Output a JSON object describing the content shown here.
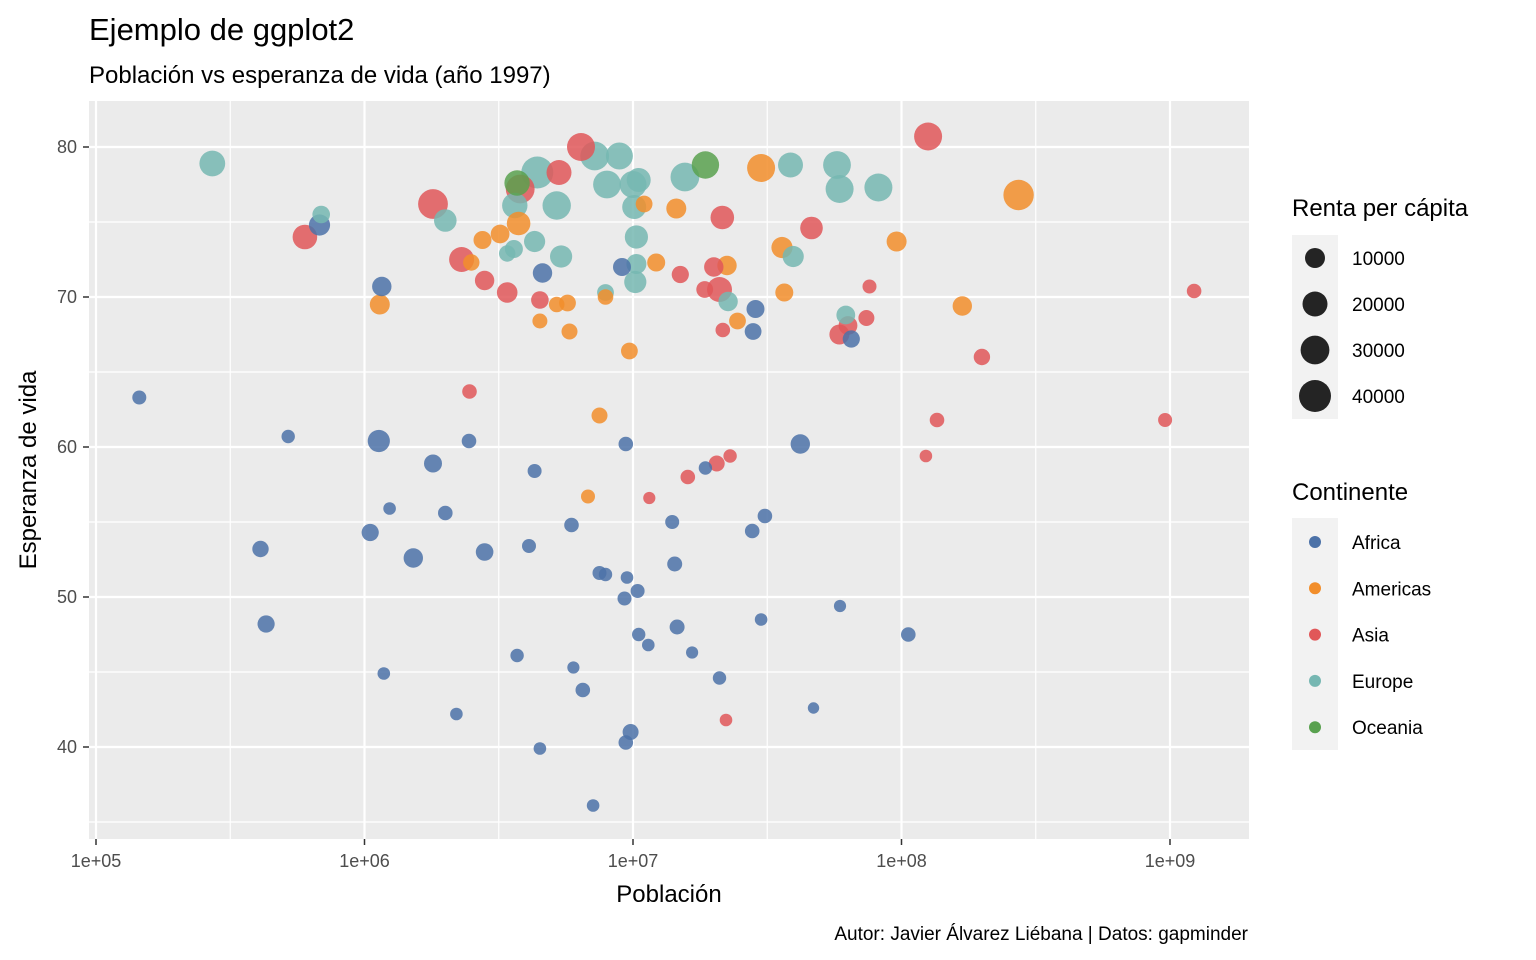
{
  "chart_data": {
    "type": "scatter",
    "title": "Ejemplo de ggplot2",
    "subtitle": "Población vs esperanza de vida (año 1997)",
    "caption": "Autor: Javier Álvarez Liébana | Datos: gapminder",
    "xlabel": "Población",
    "ylabel": "Esperanza de vida",
    "x_scale": "log10",
    "xlim": [
      100000,
      2000000000
    ],
    "ylim": [
      34,
      84
    ],
    "x_ticks": [
      {
        "value": 100000,
        "label": "1e+05"
      },
      {
        "value": 1000000,
        "label": "1e+06"
      },
      {
        "value": 10000000,
        "label": "1e+07"
      },
      {
        "value": 100000000,
        "label": "1e+08"
      },
      {
        "value": 1000000000,
        "label": "1e+09"
      }
    ],
    "y_ticks": [
      {
        "value": 40,
        "label": "40"
      },
      {
        "value": 50,
        "label": "50"
      },
      {
        "value": 60,
        "label": "60"
      },
      {
        "value": 70,
        "label": "70"
      },
      {
        "value": 80,
        "label": "80"
      }
    ],
    "grid": true,
    "legend_position": "right",
    "size_legend": {
      "title": "Renta per cápita",
      "items": [
        {
          "value": 10000,
          "label": "10000"
        },
        {
          "value": 20000,
          "label": "20000"
        },
        {
          "value": 30000,
          "label": "30000"
        },
        {
          "value": 40000,
          "label": "40000"
        }
      ]
    },
    "color_legend": {
      "title": "Continente",
      "items": [
        {
          "name": "Africa",
          "label": "Africa",
          "color": "#4C72A8"
        },
        {
          "name": "Americas",
          "label": "Americas",
          "color": "#F28E2B"
        },
        {
          "name": "Asia",
          "label": "Asia",
          "color": "#E15759"
        },
        {
          "name": "Europe",
          "label": "Europe",
          "color": "#76B7B2"
        },
        {
          "name": "Oceania",
          "label": "Oceania",
          "color": "#59A14F"
        }
      ]
    },
    "series": [
      {
        "name": "Africa",
        "color": "#4C72A8",
        "points": [
          {
            "x": 145000,
            "y": 63.3,
            "gdp": 2500
          },
          {
            "x": 520000,
            "y": 60.7,
            "gdp": 2000
          },
          {
            "x": 680000,
            "y": 74.8,
            "gdp": 12000
          },
          {
            "x": 1130000,
            "y": 60.4,
            "gdp": 14000
          },
          {
            "x": 1160000,
            "y": 70.7,
            "gdp": 9000
          },
          {
            "x": 1240000,
            "y": 55.9,
            "gdp": 1500
          },
          {
            "x": 1180000,
            "y": 44.9,
            "gdp": 1500
          },
          {
            "x": 1050000,
            "y": 54.3,
            "gdp": 6000
          },
          {
            "x": 410000,
            "y": 53.2,
            "gdp": 5000
          },
          {
            "x": 430000,
            "y": 48.2,
            "gdp": 6000
          },
          {
            "x": 1520000,
            "y": 52.6,
            "gdp": 9000
          },
          {
            "x": 1800000,
            "y": 58.9,
            "gdp": 7000
          },
          {
            "x": 2000000,
            "y": 55.6,
            "gdp": 3000
          },
          {
            "x": 2200000,
            "y": 42.2,
            "gdp": 1500
          },
          {
            "x": 2450000,
            "y": 60.4,
            "gdp": 3000
          },
          {
            "x": 2800000,
            "y": 53.0,
            "gdp": 6500
          },
          {
            "x": 3700000,
            "y": 46.1,
            "gdp": 2000
          },
          {
            "x": 4100000,
            "y": 53.4,
            "gdp": 2500
          },
          {
            "x": 4300000,
            "y": 58.4,
            "gdp": 2500
          },
          {
            "x": 4600000,
            "y": 71.6,
            "gdp": 9000
          },
          {
            "x": 4500000,
            "y": 39.9,
            "gdp": 1500
          },
          {
            "x": 5900000,
            "y": 54.8,
            "gdp": 3000
          },
          {
            "x": 6000000,
            "y": 45.3,
            "gdp": 1200
          },
          {
            "x": 6500000,
            "y": 43.8,
            "gdp": 3000
          },
          {
            "x": 7100000,
            "y": 36.1,
            "gdp": 1500
          },
          {
            "x": 7500000,
            "y": 51.6,
            "gdp": 2500
          },
          {
            "x": 7900000,
            "y": 51.5,
            "gdp": 2000
          },
          {
            "x": 9300000,
            "y": 49.9,
            "gdp": 2500
          },
          {
            "x": 9400000,
            "y": 60.2,
            "gdp": 3000
          },
          {
            "x": 9500000,
            "y": 51.3,
            "gdp": 1500
          },
          {
            "x": 9400000,
            "y": 40.3,
            "gdp": 3000
          },
          {
            "x": 9800000,
            "y": 41.0,
            "gdp": 4500
          },
          {
            "x": 9100000,
            "y": 72.0,
            "gdp": 7000
          },
          {
            "x": 10400000,
            "y": 50.4,
            "gdp": 2500
          },
          {
            "x": 10500000,
            "y": 47.5,
            "gdp": 2000
          },
          {
            "x": 11400000,
            "y": 46.8,
            "gdp": 1500
          },
          {
            "x": 14000000,
            "y": 55.0,
            "gdp": 2500
          },
          {
            "x": 14300000,
            "y": 52.2,
            "gdp": 3500
          },
          {
            "x": 14600000,
            "y": 48.0,
            "gdp": 3500
          },
          {
            "x": 16600000,
            "y": 46.3,
            "gdp": 1200
          },
          {
            "x": 18600000,
            "y": 58.6,
            "gdp": 2000
          },
          {
            "x": 21000000,
            "y": 44.6,
            "gdp": 2000
          },
          {
            "x": 27800000,
            "y": 54.4,
            "gdp": 3000
          },
          {
            "x": 28000000,
            "y": 67.7,
            "gdp": 5500
          },
          {
            "x": 28600000,
            "y": 69.2,
            "gdp": 7000
          },
          {
            "x": 30000000,
            "y": 48.5,
            "gdp": 1500
          },
          {
            "x": 31000000,
            "y": 55.4,
            "gdp": 3000
          },
          {
            "x": 42000000,
            "y": 60.2,
            "gdp": 9000
          },
          {
            "x": 47000000,
            "y": 42.6,
            "gdp": 800
          },
          {
            "x": 59000000,
            "y": 49.4,
            "gdp": 1200
          },
          {
            "x": 65000000,
            "y": 67.2,
            "gdp": 6000
          },
          {
            "x": 106000000,
            "y": 47.5,
            "gdp": 3000
          }
        ]
      },
      {
        "name": "Americas",
        "color": "#F28E2B",
        "points": [
          {
            "x": 1140000,
            "y": 69.5,
            "gdp": 10000
          },
          {
            "x": 2500000,
            "y": 72.3,
            "gdp": 5000
          },
          {
            "x": 2750000,
            "y": 73.8,
            "gdp": 7000
          },
          {
            "x": 3200000,
            "y": 74.2,
            "gdp": 8000
          },
          {
            "x": 3750000,
            "y": 74.9,
            "gdp": 17000
          },
          {
            "x": 4500000,
            "y": 68.4,
            "gdp": 3500
          },
          {
            "x": 5200000,
            "y": 69.5,
            "gdp": 4000
          },
          {
            "x": 5700000,
            "y": 69.6,
            "gdp": 5500
          },
          {
            "x": 5800000,
            "y": 67.7,
            "gdp": 4500
          },
          {
            "x": 6800000,
            "y": 56.7,
            "gdp": 2500
          },
          {
            "x": 7500000,
            "y": 62.1,
            "gdp": 4500
          },
          {
            "x": 7900000,
            "y": 70.0,
            "gdp": 4000
          },
          {
            "x": 9700000,
            "y": 66.4,
            "gdp": 5500
          },
          {
            "x": 11000000,
            "y": 76.2,
            "gdp": 5500
          },
          {
            "x": 12200000,
            "y": 72.3,
            "gdp": 7000
          },
          {
            "x": 14500000,
            "y": 75.9,
            "gdp": 10000
          },
          {
            "x": 22400000,
            "y": 72.1,
            "gdp": 9000
          },
          {
            "x": 24500000,
            "y": 68.4,
            "gdp": 5500
          },
          {
            "x": 30000000,
            "y": 78.6,
            "gdp": 28000
          },
          {
            "x": 35900000,
            "y": 73.3,
            "gdp": 12000
          },
          {
            "x": 36600000,
            "y": 70.3,
            "gdp": 7000
          },
          {
            "x": 95900000,
            "y": 73.7,
            "gdp": 10000
          },
          {
            "x": 168500000,
            "y": 69.4,
            "gdp": 9000
          },
          {
            "x": 272900000,
            "y": 76.8,
            "gdp": 35000
          }
        ]
      },
      {
        "name": "Asia",
        "color": "#E15759",
        "points": [
          {
            "x": 600000,
            "y": 74.0,
            "gdp": 19000
          },
          {
            "x": 1800000,
            "y": 76.2,
            "gdp": 33000
          },
          {
            "x": 2300000,
            "y": 72.5,
            "gdp": 20000
          },
          {
            "x": 2460000,
            "y": 63.7,
            "gdp": 3000
          },
          {
            "x": 2800000,
            "y": 71.1,
            "gdp": 9000
          },
          {
            "x": 3400000,
            "y": 70.3,
            "gdp": 11000
          },
          {
            "x": 3800000,
            "y": 77.2,
            "gdp": 30000
          },
          {
            "x": 4500000,
            "y": 69.8,
            "gdp": 6500
          },
          {
            "x": 5300000,
            "y": 78.3,
            "gdp": 20000
          },
          {
            "x": 6400000,
            "y": 80.0,
            "gdp": 28000
          },
          {
            "x": 11500000,
            "y": 56.6,
            "gdp": 1200
          },
          {
            "x": 15000000,
            "y": 71.5,
            "gdp": 6000
          },
          {
            "x": 16000000,
            "y": 58.0,
            "gdp": 3000
          },
          {
            "x": 18500000,
            "y": 70.5,
            "gdp": 5500
          },
          {
            "x": 20000000,
            "y": 72.0,
            "gdp": 9000
          },
          {
            "x": 20500000,
            "y": 58.9,
            "gdp": 4500
          },
          {
            "x": 21000000,
            "y": 70.5,
            "gdp": 20000
          },
          {
            "x": 21500000,
            "y": 75.3,
            "gdp": 17000
          },
          {
            "x": 21600000,
            "y": 67.8,
            "gdp": 3000
          },
          {
            "x": 22200000,
            "y": 41.8,
            "gdp": 1500
          },
          {
            "x": 23000000,
            "y": 59.4,
            "gdp": 2000
          },
          {
            "x": 46200000,
            "y": 74.6,
            "gdp": 15000
          },
          {
            "x": 58700000,
            "y": 67.5,
            "gdp": 10000
          },
          {
            "x": 63200000,
            "y": 68.1,
            "gdp": 8000
          },
          {
            "x": 74000000,
            "y": 68.6,
            "gdp": 4500
          },
          {
            "x": 76000000,
            "y": 70.7,
            "gdp": 2500
          },
          {
            "x": 123300000,
            "y": 59.4,
            "gdp": 1500
          },
          {
            "x": 125600000,
            "y": 80.7,
            "gdp": 28000
          },
          {
            "x": 135600000,
            "y": 61.8,
            "gdp": 3000
          },
          {
            "x": 199300000,
            "y": 66.0,
            "gdp": 5000
          },
          {
            "x": 959000000,
            "y": 61.8,
            "gdp": 2500
          },
          {
            "x": 1230000000,
            "y": 70.4,
            "gdp": 3000
          }
        ]
      },
      {
        "name": "Europe",
        "color": "#76B7B2",
        "points": [
          {
            "x": 271000,
            "y": 78.9,
            "gdp": 22000
          },
          {
            "x": 690000,
            "y": 75.5,
            "gdp": 6500
          },
          {
            "x": 2000000,
            "y": 75.1,
            "gdp": 15000
          },
          {
            "x": 3400000,
            "y": 72.9,
            "gdp": 5000
          },
          {
            "x": 3600000,
            "y": 73.2,
            "gdp": 7000
          },
          {
            "x": 3630000,
            "y": 76.1,
            "gdp": 21000
          },
          {
            "x": 4300000,
            "y": 73.7,
            "gdp": 12000
          },
          {
            "x": 4400000,
            "y": 78.3,
            "gdp": 40000
          },
          {
            "x": 5200000,
            "y": 76.1,
            "gdp": 29000
          },
          {
            "x": 5400000,
            "y": 72.7,
            "gdp": 14000
          },
          {
            "x": 7200000,
            "y": 79.4,
            "gdp": 30000
          },
          {
            "x": 7900000,
            "y": 70.3,
            "gdp": 5500
          },
          {
            "x": 8000000,
            "y": 77.5,
            "gdp": 27000
          },
          {
            "x": 8900000,
            "y": 79.4,
            "gdp": 25000
          },
          {
            "x": 10000000,
            "y": 77.5,
            "gdp": 25000
          },
          {
            "x": 10100000,
            "y": 76.0,
            "gdp": 18000
          },
          {
            "x": 10200000,
            "y": 71.0,
            "gdp": 14000
          },
          {
            "x": 10300000,
            "y": 74.0,
            "gdp": 16000
          },
          {
            "x": 10300000,
            "y": 72.2,
            "gdp": 10000
          },
          {
            "x": 10500000,
            "y": 77.8,
            "gdp": 18000
          },
          {
            "x": 15600000,
            "y": 78.0,
            "gdp": 30000
          },
          {
            "x": 22600000,
            "y": 69.7,
            "gdp": 9000
          },
          {
            "x": 38600000,
            "y": 78.8,
            "gdp": 20000
          },
          {
            "x": 39500000,
            "y": 72.7,
            "gdp": 12000
          },
          {
            "x": 57500000,
            "y": 78.8,
            "gdp": 27000
          },
          {
            "x": 58800000,
            "y": 77.2,
            "gdp": 28000
          },
          {
            "x": 62000000,
            "y": 68.8,
            "gdp": 8000
          },
          {
            "x": 82000000,
            "y": 77.3,
            "gdp": 28000
          }
        ]
      },
      {
        "name": "Oceania",
        "color": "#59A14F",
        "points": [
          {
            "x": 3700000,
            "y": 77.6,
            "gdp": 21000
          },
          {
            "x": 18600000,
            "y": 78.8,
            "gdp": 26000
          }
        ]
      }
    ]
  }
}
